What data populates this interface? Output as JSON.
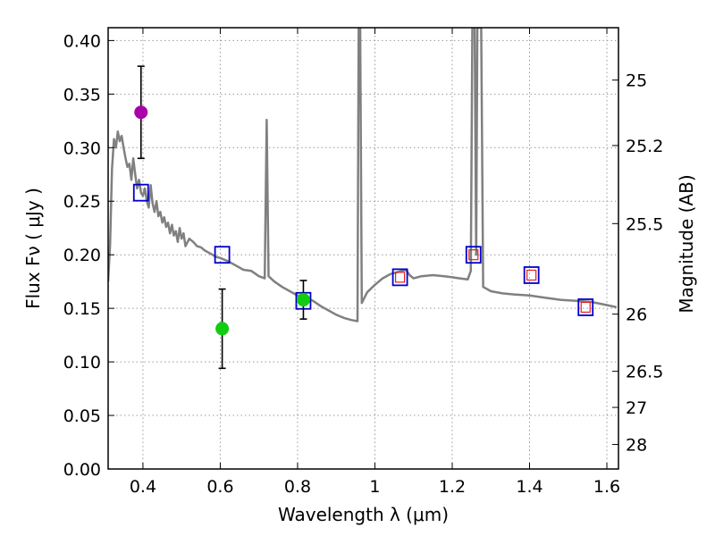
{
  "chart_data": {
    "type": "scatter",
    "title": "",
    "xlabel": "Wavelength  λ (μm)",
    "ylabel": "Flux  Fν  ( μJy )",
    "ylabel_right": "Magnitude (AB)",
    "xlim": [
      0.31,
      1.63
    ],
    "ylim": [
      0.0,
      0.412
    ],
    "grid": true,
    "x_ticks": [
      0.4,
      0.6,
      0.8,
      1.0,
      1.2,
      1.4,
      1.6
    ],
    "x_tick_labels": [
      "0.4",
      "0.6",
      "0.8",
      "1",
      "1.2",
      "1.4",
      "1.6"
    ],
    "y_ticks": [
      0.0,
      0.05,
      0.1,
      0.15,
      0.2,
      0.25,
      0.3,
      0.35,
      0.4
    ],
    "y_tick_labels": [
      "0.00",
      "0.05",
      "0.10",
      "0.15",
      "0.20",
      "0.25",
      "0.30",
      "0.35",
      "0.40"
    ],
    "right_ticks": [
      {
        "label": "25",
        "flux": 0.3631
      },
      {
        "label": "25.2",
        "flux": 0.302
      },
      {
        "label": "25.5",
        "flux": 0.2291
      },
      {
        "label": "26",
        "flux": 0.1446
      },
      {
        "label": "26.5",
        "flux": 0.0912
      },
      {
        "label": "27",
        "flux": 0.0575
      },
      {
        "label": "28",
        "flux": 0.0229
      }
    ],
    "colors": {
      "template": "#808080",
      "model_box": "#0000cc",
      "model_inner": "#dd2222",
      "purple": "#aa00aa",
      "green": "#11cc11",
      "errorbar": "#000000",
      "grid": "#9a9a9a"
    },
    "series": [
      {
        "name": "template spectrum",
        "style": "line",
        "points": [
          [
            0.31,
            0.175
          ],
          [
            0.315,
            0.21
          ],
          [
            0.32,
            0.28
          ],
          [
            0.325,
            0.308
          ],
          [
            0.33,
            0.3
          ],
          [
            0.335,
            0.315
          ],
          [
            0.34,
            0.306
          ],
          [
            0.345,
            0.311
          ],
          [
            0.35,
            0.3
          ],
          [
            0.355,
            0.29
          ],
          [
            0.36,
            0.282
          ],
          [
            0.365,
            0.285
          ],
          [
            0.37,
            0.27
          ],
          [
            0.375,
            0.29
          ],
          [
            0.38,
            0.275
          ],
          [
            0.385,
            0.262
          ],
          [
            0.39,
            0.27
          ],
          [
            0.395,
            0.258
          ],
          [
            0.4,
            0.255
          ],
          [
            0.405,
            0.262
          ],
          [
            0.41,
            0.25
          ],
          [
            0.415,
            0.244
          ],
          [
            0.42,
            0.265
          ],
          [
            0.425,
            0.248
          ],
          [
            0.43,
            0.24
          ],
          [
            0.435,
            0.25
          ],
          [
            0.44,
            0.236
          ],
          [
            0.445,
            0.24
          ],
          [
            0.45,
            0.23
          ],
          [
            0.455,
            0.235
          ],
          [
            0.46,
            0.226
          ],
          [
            0.465,
            0.23
          ],
          [
            0.47,
            0.22
          ],
          [
            0.475,
            0.228
          ],
          [
            0.48,
            0.218
          ],
          [
            0.485,
            0.222
          ],
          [
            0.49,
            0.212
          ],
          [
            0.495,
            0.225
          ],
          [
            0.5,
            0.215
          ],
          [
            0.505,
            0.22
          ],
          [
            0.51,
            0.208
          ],
          [
            0.52,
            0.215
          ],
          [
            0.53,
            0.212
          ],
          [
            0.54,
            0.208
          ],
          [
            0.55,
            0.207
          ],
          [
            0.56,
            0.204
          ],
          [
            0.57,
            0.202
          ],
          [
            0.58,
            0.2
          ],
          [
            0.59,
            0.198
          ],
          [
            0.6,
            0.197
          ],
          [
            0.62,
            0.194
          ],
          [
            0.64,
            0.19
          ],
          [
            0.66,
            0.186
          ],
          [
            0.68,
            0.185
          ],
          [
            0.7,
            0.18
          ],
          [
            0.715,
            0.178
          ],
          [
            0.72,
            0.326
          ],
          [
            0.725,
            0.18
          ],
          [
            0.74,
            0.175
          ],
          [
            0.76,
            0.17
          ],
          [
            0.78,
            0.166
          ],
          [
            0.8,
            0.162
          ],
          [
            0.82,
            0.16
          ],
          [
            0.84,
            0.157
          ],
          [
            0.86,
            0.152
          ],
          [
            0.88,
            0.148
          ],
          [
            0.9,
            0.144
          ],
          [
            0.92,
            0.141
          ],
          [
            0.94,
            0.139
          ],
          [
            0.955,
            0.138
          ],
          [
            0.958,
            0.412
          ],
          [
            0.962,
            0.412
          ],
          [
            0.966,
            0.155
          ],
          [
            0.98,
            0.165
          ],
          [
            1.0,
            0.172
          ],
          [
            1.02,
            0.178
          ],
          [
            1.04,
            0.182
          ],
          [
            1.06,
            0.184
          ],
          [
            1.08,
            0.186
          ],
          [
            1.09,
            0.181
          ],
          [
            1.1,
            0.178
          ],
          [
            1.12,
            0.18
          ],
          [
            1.15,
            0.181
          ],
          [
            1.18,
            0.18
          ],
          [
            1.2,
            0.179
          ],
          [
            1.22,
            0.178
          ],
          [
            1.24,
            0.177
          ],
          [
            1.248,
            0.185
          ],
          [
            1.252,
            0.412
          ],
          [
            1.258,
            0.412
          ],
          [
            1.262,
            0.2
          ],
          [
            1.265,
            0.412
          ],
          [
            1.275,
            0.412
          ],
          [
            1.28,
            0.17
          ],
          [
            1.3,
            0.166
          ],
          [
            1.33,
            0.164
          ],
          [
            1.36,
            0.163
          ],
          [
            1.4,
            0.162
          ],
          [
            1.44,
            0.16
          ],
          [
            1.48,
            0.158
          ],
          [
            1.52,
            0.157
          ],
          [
            1.56,
            0.156
          ],
          [
            1.6,
            0.153
          ],
          [
            1.625,
            0.151
          ]
        ]
      },
      {
        "name": "model photometry",
        "style": "square",
        "points": [
          [
            0.395,
            0.258
          ],
          [
            0.605,
            0.2
          ],
          [
            0.815,
            0.157
          ],
          [
            1.065,
            0.179
          ],
          [
            1.255,
            0.2
          ],
          [
            1.405,
            0.181
          ],
          [
            1.545,
            0.151
          ]
        ],
        "inner_marker_indices": [
          3,
          4,
          5,
          6
        ]
      },
      {
        "name": "observed (purple)",
        "style": "dot",
        "points": [
          [
            0.395,
            0.333,
            0.29,
            0.376
          ]
        ]
      },
      {
        "name": "observed (green)",
        "style": "dot",
        "points": [
          [
            0.605,
            0.131,
            0.094,
            0.168
          ],
          [
            0.815,
            0.158,
            0.14,
            0.176
          ]
        ]
      }
    ]
  }
}
